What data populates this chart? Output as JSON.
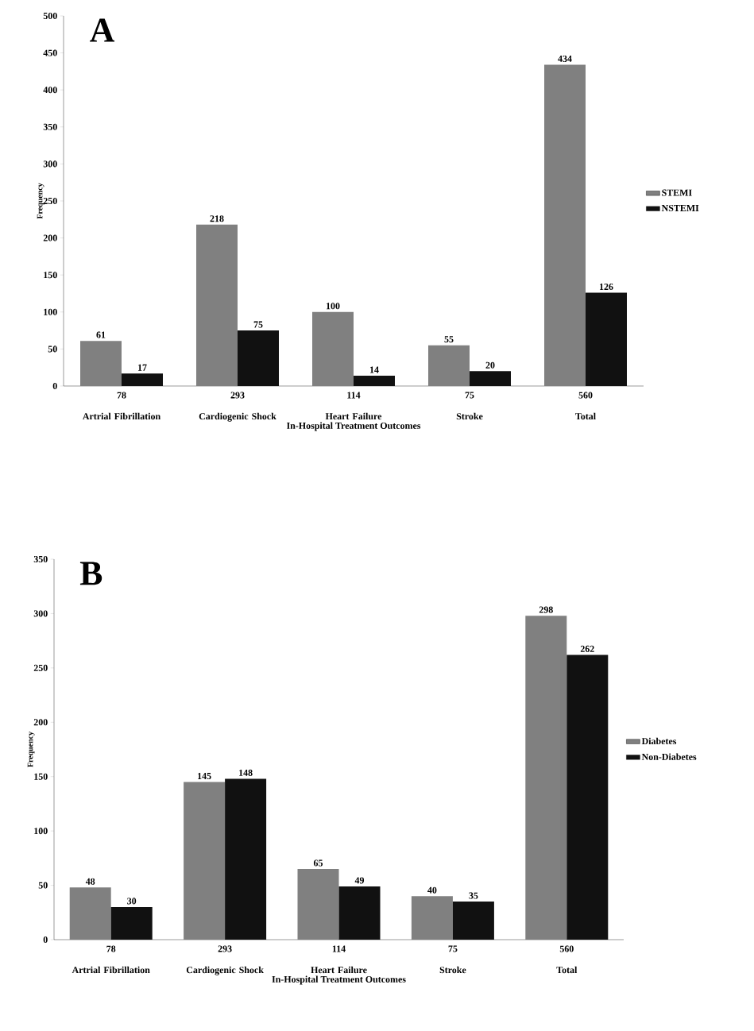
{
  "chart_data": [
    {
      "type": "bar",
      "title": "A",
      "xlabel": "In-Hospital Treatment Outcomes",
      "ylabel": "Frequency",
      "categories": [
        "Artrial Fibrillation",
        "Cardiogenic Shock",
        "Heart Failure",
        "Stroke",
        "Total"
      ],
      "series": [
        {
          "name": "STEMI",
          "color": "#808080",
          "values": [
            61,
            218,
            100,
            55,
            434
          ]
        },
        {
          "name": "NSTEMI",
          "color": "#111111",
          "values": [
            17,
            75,
            14,
            20,
            126
          ]
        }
      ],
      "annotations": [
        "78",
        "293",
        "114",
        "75",
        "560"
      ],
      "ylim": [
        0,
        500
      ],
      "yticks": [
        0,
        50,
        100,
        150,
        200,
        250,
        300,
        350,
        400,
        450,
        500
      ],
      "data_labels": true,
      "legend": "right"
    },
    {
      "type": "bar",
      "title": "B",
      "xlabel": "In-Hospital Treatment Outcomes",
      "ylabel": "Frequency",
      "categories": [
        "Artrial Fibrillation",
        "Cardiogenic Shock",
        "Heart Failure",
        "Stroke",
        "Total"
      ],
      "series": [
        {
          "name": "Diabetes",
          "color": "#808080",
          "values": [
            48,
            145,
            65,
            40,
            298
          ]
        },
        {
          "name": "Non-Diabetes",
          "color": "#111111",
          "values": [
            30,
            148,
            49,
            35,
            262
          ]
        }
      ],
      "annotations": [
        "78",
        "293",
        "114",
        "75",
        "560"
      ],
      "ylim": [
        0,
        350
      ],
      "yticks": [
        0,
        50,
        100,
        150,
        200,
        250,
        300,
        350
      ],
      "data_labels": true,
      "legend": "right"
    }
  ]
}
